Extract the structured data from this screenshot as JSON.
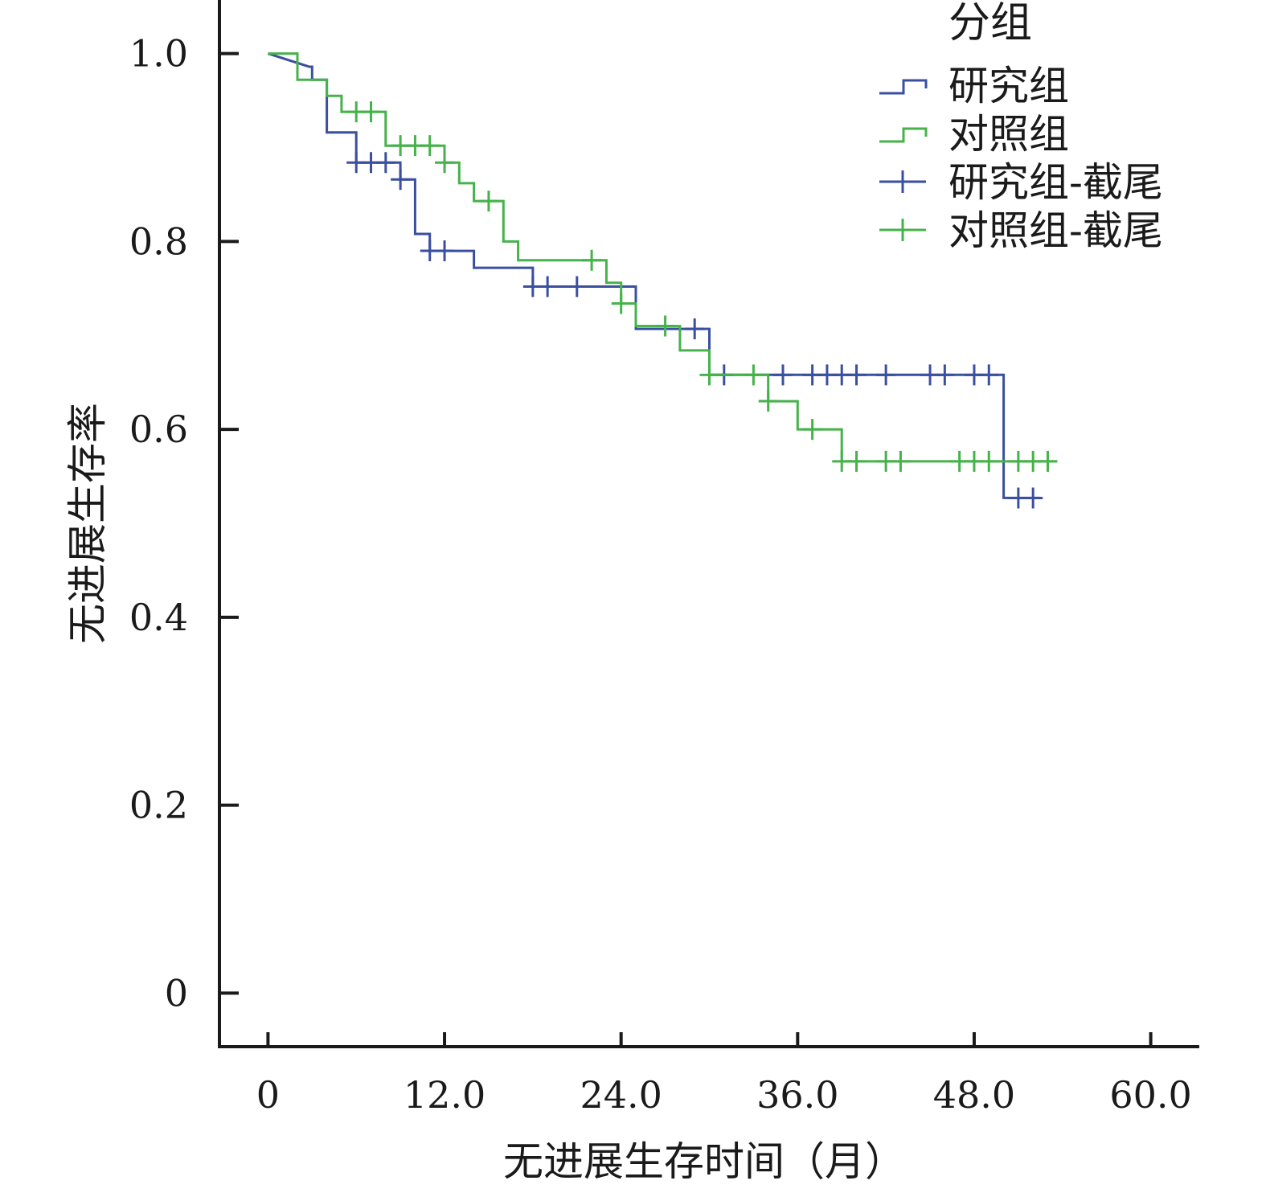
{
  "chart_data": {
    "type": "line",
    "subtype": "kaplan-meier-step",
    "xlabel": "无进展生存时间（月）",
    "ylabel": "无进展生存率",
    "x_ticks": [
      "0",
      "12.0",
      "24.0",
      "36.0",
      "48.0",
      "60.0"
    ],
    "x_tick_values": [
      0,
      12,
      24,
      36,
      48,
      60
    ],
    "y_ticks": [
      "0",
      "0.2",
      "0.4",
      "0.6",
      "0.8",
      "1.0"
    ],
    "y_tick_values": [
      0,
      0.2,
      0.4,
      0.6,
      0.8,
      1.0
    ],
    "xlim": [
      -3.3,
      63.3
    ],
    "ylim": [
      -0.057,
      1.057
    ],
    "grid": false,
    "legend": {
      "title": "分组",
      "placement": "top-right",
      "entries": [
        {
          "label": "研究组",
          "marker": "step",
          "series": "research"
        },
        {
          "label": "对照组",
          "marker": "step",
          "series": "control"
        },
        {
          "label": "研究组-截尾",
          "marker": "plus",
          "series": "research"
        },
        {
          "label": "对照组-截尾",
          "marker": "plus",
          "series": "control"
        }
      ]
    },
    "series": [
      {
        "key": "research",
        "name": "研究组",
        "color": "#3a4fa0",
        "steps": [
          [
            0,
            1.0
          ],
          [
            2.8,
            0.986
          ],
          [
            3.0,
            0.986
          ],
          [
            3.0,
            0.972
          ],
          [
            4.0,
            0.972
          ],
          [
            4.0,
            0.916
          ],
          [
            6.0,
            0.916
          ],
          [
            6.0,
            0.884
          ],
          [
            9.0,
            0.884
          ],
          [
            9.0,
            0.866
          ],
          [
            10.0,
            0.866
          ],
          [
            10.0,
            0.808
          ],
          [
            11.0,
            0.808
          ],
          [
            11.0,
            0.79
          ],
          [
            14.0,
            0.79
          ],
          [
            14.0,
            0.772
          ],
          [
            18.0,
            0.772
          ],
          [
            18.0,
            0.752
          ],
          [
            25.0,
            0.752
          ],
          [
            25.0,
            0.707
          ],
          [
            30.0,
            0.707
          ],
          [
            30.0,
            0.658
          ],
          [
            50.0,
            0.658
          ],
          [
            50.0,
            0.527
          ],
          [
            52.5,
            0.527
          ]
        ],
        "censored": [
          [
            6.0,
            0.884
          ],
          [
            7.0,
            0.884
          ],
          [
            8.0,
            0.884
          ],
          [
            9.0,
            0.866
          ],
          [
            11.0,
            0.79
          ],
          [
            12.0,
            0.79
          ],
          [
            18.0,
            0.752
          ],
          [
            19.0,
            0.752
          ],
          [
            21.0,
            0.752
          ],
          [
            29.0,
            0.707
          ],
          [
            31.0,
            0.658
          ],
          [
            35.0,
            0.658
          ],
          [
            37.0,
            0.658
          ],
          [
            38.0,
            0.658
          ],
          [
            39.0,
            0.658
          ],
          [
            40.0,
            0.658
          ],
          [
            42.0,
            0.658
          ],
          [
            45.0,
            0.658
          ],
          [
            46.0,
            0.658
          ],
          [
            48.0,
            0.658
          ],
          [
            49.0,
            0.658
          ],
          [
            51.0,
            0.527
          ],
          [
            52.0,
            0.527
          ]
        ]
      },
      {
        "key": "control",
        "name": "对照组",
        "color": "#45b24a",
        "steps": [
          [
            0,
            1.0
          ],
          [
            2.0,
            1.0
          ],
          [
            2.0,
            0.972
          ],
          [
            4.0,
            0.972
          ],
          [
            4.0,
            0.955
          ],
          [
            5.0,
            0.955
          ],
          [
            5.0,
            0.938
          ],
          [
            8.0,
            0.938
          ],
          [
            8.0,
            0.902
          ],
          [
            12.0,
            0.902
          ],
          [
            12.0,
            0.884
          ],
          [
            13.0,
            0.884
          ],
          [
            13.0,
            0.862
          ],
          [
            14.0,
            0.862
          ],
          [
            14.0,
            0.843
          ],
          [
            16.0,
            0.843
          ],
          [
            16.0,
            0.8
          ],
          [
            17.0,
            0.8
          ],
          [
            17.0,
            0.78
          ],
          [
            23.0,
            0.78
          ],
          [
            23.0,
            0.756
          ],
          [
            24.0,
            0.756
          ],
          [
            24.0,
            0.734
          ],
          [
            25.0,
            0.734
          ],
          [
            25.0,
            0.71
          ],
          [
            28.0,
            0.71
          ],
          [
            28.0,
            0.684
          ],
          [
            30.0,
            0.684
          ],
          [
            30.0,
            0.658
          ],
          [
            34.0,
            0.658
          ],
          [
            34.0,
            0.63
          ],
          [
            36.0,
            0.63
          ],
          [
            36.0,
            0.6
          ],
          [
            39.0,
            0.6
          ],
          [
            39.0,
            0.566
          ],
          [
            53.5,
            0.566
          ]
        ],
        "censored": [
          [
            6.0,
            0.938
          ],
          [
            7.0,
            0.938
          ],
          [
            9.0,
            0.902
          ],
          [
            10.0,
            0.902
          ],
          [
            11.0,
            0.902
          ],
          [
            12.0,
            0.884
          ],
          [
            15.0,
            0.843
          ],
          [
            22.0,
            0.78
          ],
          [
            24.0,
            0.734
          ],
          [
            27.0,
            0.71
          ],
          [
            30.0,
            0.658
          ],
          [
            33.0,
            0.658
          ],
          [
            34.0,
            0.63
          ],
          [
            37.0,
            0.6
          ],
          [
            39.0,
            0.566
          ],
          [
            40.0,
            0.566
          ],
          [
            42.0,
            0.566
          ],
          [
            43.0,
            0.566
          ],
          [
            47.0,
            0.566
          ],
          [
            48.0,
            0.566
          ],
          [
            49.0,
            0.566
          ],
          [
            51.0,
            0.566
          ],
          [
            52.0,
            0.566
          ],
          [
            53.0,
            0.566
          ]
        ]
      }
    ]
  }
}
